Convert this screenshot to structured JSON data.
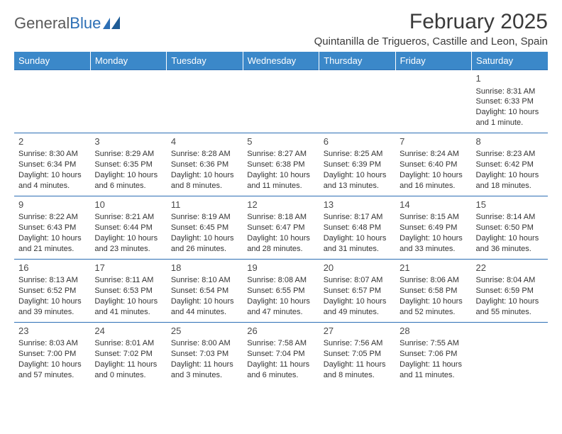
{
  "logo": {
    "text1": "General",
    "text2": "Blue"
  },
  "title": "February 2025",
  "location": "Quintanilla de Trigueros, Castille and Leon, Spain",
  "colors": {
    "header_bg": "#3b88c9",
    "header_text": "#ffffff",
    "border": "#2d6fb5",
    "body_text": "#333333",
    "logo_gray": "#5a5a5a",
    "logo_blue": "#2d6fb5"
  },
  "dayNames": [
    "Sunday",
    "Monday",
    "Tuesday",
    "Wednesday",
    "Thursday",
    "Friday",
    "Saturday"
  ],
  "weeks": [
    [
      null,
      null,
      null,
      null,
      null,
      null,
      {
        "d": "1",
        "sr": "Sunrise: 8:31 AM",
        "ss": "Sunset: 6:33 PM",
        "dl": "Daylight: 10 hours and 1 minute."
      }
    ],
    [
      {
        "d": "2",
        "sr": "Sunrise: 8:30 AM",
        "ss": "Sunset: 6:34 PM",
        "dl": "Daylight: 10 hours and 4 minutes."
      },
      {
        "d": "3",
        "sr": "Sunrise: 8:29 AM",
        "ss": "Sunset: 6:35 PM",
        "dl": "Daylight: 10 hours and 6 minutes."
      },
      {
        "d": "4",
        "sr": "Sunrise: 8:28 AM",
        "ss": "Sunset: 6:36 PM",
        "dl": "Daylight: 10 hours and 8 minutes."
      },
      {
        "d": "5",
        "sr": "Sunrise: 8:27 AM",
        "ss": "Sunset: 6:38 PM",
        "dl": "Daylight: 10 hours and 11 minutes."
      },
      {
        "d": "6",
        "sr": "Sunrise: 8:25 AM",
        "ss": "Sunset: 6:39 PM",
        "dl": "Daylight: 10 hours and 13 minutes."
      },
      {
        "d": "7",
        "sr": "Sunrise: 8:24 AM",
        "ss": "Sunset: 6:40 PM",
        "dl": "Daylight: 10 hours and 16 minutes."
      },
      {
        "d": "8",
        "sr": "Sunrise: 8:23 AM",
        "ss": "Sunset: 6:42 PM",
        "dl": "Daylight: 10 hours and 18 minutes."
      }
    ],
    [
      {
        "d": "9",
        "sr": "Sunrise: 8:22 AM",
        "ss": "Sunset: 6:43 PM",
        "dl": "Daylight: 10 hours and 21 minutes."
      },
      {
        "d": "10",
        "sr": "Sunrise: 8:21 AM",
        "ss": "Sunset: 6:44 PM",
        "dl": "Daylight: 10 hours and 23 minutes."
      },
      {
        "d": "11",
        "sr": "Sunrise: 8:19 AM",
        "ss": "Sunset: 6:45 PM",
        "dl": "Daylight: 10 hours and 26 minutes."
      },
      {
        "d": "12",
        "sr": "Sunrise: 8:18 AM",
        "ss": "Sunset: 6:47 PM",
        "dl": "Daylight: 10 hours and 28 minutes."
      },
      {
        "d": "13",
        "sr": "Sunrise: 8:17 AM",
        "ss": "Sunset: 6:48 PM",
        "dl": "Daylight: 10 hours and 31 minutes."
      },
      {
        "d": "14",
        "sr": "Sunrise: 8:15 AM",
        "ss": "Sunset: 6:49 PM",
        "dl": "Daylight: 10 hours and 33 minutes."
      },
      {
        "d": "15",
        "sr": "Sunrise: 8:14 AM",
        "ss": "Sunset: 6:50 PM",
        "dl": "Daylight: 10 hours and 36 minutes."
      }
    ],
    [
      {
        "d": "16",
        "sr": "Sunrise: 8:13 AM",
        "ss": "Sunset: 6:52 PM",
        "dl": "Daylight: 10 hours and 39 minutes."
      },
      {
        "d": "17",
        "sr": "Sunrise: 8:11 AM",
        "ss": "Sunset: 6:53 PM",
        "dl": "Daylight: 10 hours and 41 minutes."
      },
      {
        "d": "18",
        "sr": "Sunrise: 8:10 AM",
        "ss": "Sunset: 6:54 PM",
        "dl": "Daylight: 10 hours and 44 minutes."
      },
      {
        "d": "19",
        "sr": "Sunrise: 8:08 AM",
        "ss": "Sunset: 6:55 PM",
        "dl": "Daylight: 10 hours and 47 minutes."
      },
      {
        "d": "20",
        "sr": "Sunrise: 8:07 AM",
        "ss": "Sunset: 6:57 PM",
        "dl": "Daylight: 10 hours and 49 minutes."
      },
      {
        "d": "21",
        "sr": "Sunrise: 8:06 AM",
        "ss": "Sunset: 6:58 PM",
        "dl": "Daylight: 10 hours and 52 minutes."
      },
      {
        "d": "22",
        "sr": "Sunrise: 8:04 AM",
        "ss": "Sunset: 6:59 PM",
        "dl": "Daylight: 10 hours and 55 minutes."
      }
    ],
    [
      {
        "d": "23",
        "sr": "Sunrise: 8:03 AM",
        "ss": "Sunset: 7:00 PM",
        "dl": "Daylight: 10 hours and 57 minutes."
      },
      {
        "d": "24",
        "sr": "Sunrise: 8:01 AM",
        "ss": "Sunset: 7:02 PM",
        "dl": "Daylight: 11 hours and 0 minutes."
      },
      {
        "d": "25",
        "sr": "Sunrise: 8:00 AM",
        "ss": "Sunset: 7:03 PM",
        "dl": "Daylight: 11 hours and 3 minutes."
      },
      {
        "d": "26",
        "sr": "Sunrise: 7:58 AM",
        "ss": "Sunset: 7:04 PM",
        "dl": "Daylight: 11 hours and 6 minutes."
      },
      {
        "d": "27",
        "sr": "Sunrise: 7:56 AM",
        "ss": "Sunset: 7:05 PM",
        "dl": "Daylight: 11 hours and 8 minutes."
      },
      {
        "d": "28",
        "sr": "Sunrise: 7:55 AM",
        "ss": "Sunset: 7:06 PM",
        "dl": "Daylight: 11 hours and 11 minutes."
      },
      null
    ]
  ]
}
